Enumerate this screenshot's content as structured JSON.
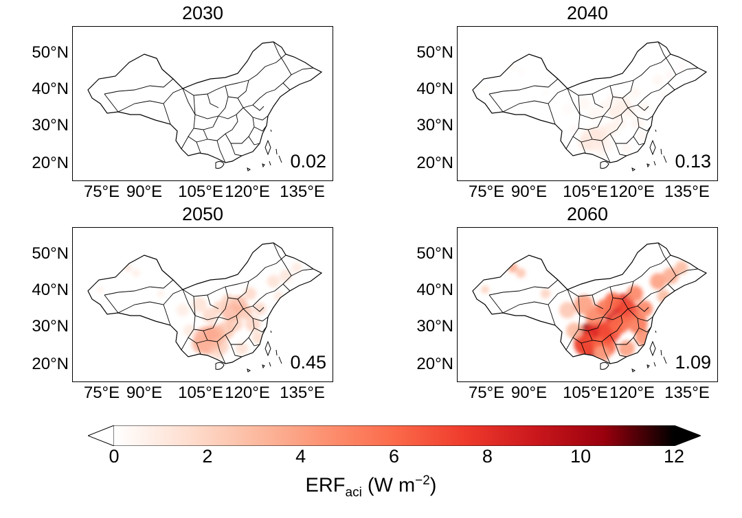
{
  "panels": [
    {
      "year": "2030",
      "value": "0.02",
      "intensity": 0.0
    },
    {
      "year": "2040",
      "value": "0.13",
      "intensity": 0.18
    },
    {
      "year": "2050",
      "value": "0.45",
      "intensity": 0.48
    },
    {
      "year": "2060",
      "value": "1.09",
      "intensity": 1.0
    }
  ],
  "lat_ticks": [
    "50°N",
    "40°N",
    "30°N",
    "20°N"
  ],
  "lon_ticks": [
    "75°E",
    "90°E",
    "105°E",
    "120°E",
    "135°E"
  ],
  "colorbar": {
    "ticks": [
      "0",
      "2",
      "4",
      "6",
      "8",
      "10",
      "12"
    ],
    "label_main": "ERF",
    "label_sub": "aci",
    "label_unit_open": " (W m",
    "label_sup": "−2",
    "label_close": ")",
    "colors": [
      "#ffffff",
      "#fee0d2",
      "#fcbba1",
      "#fc9272",
      "#fb6a4a",
      "#ef3b2c",
      "#cb181d",
      "#99000d",
      "#000000"
    ]
  }
}
